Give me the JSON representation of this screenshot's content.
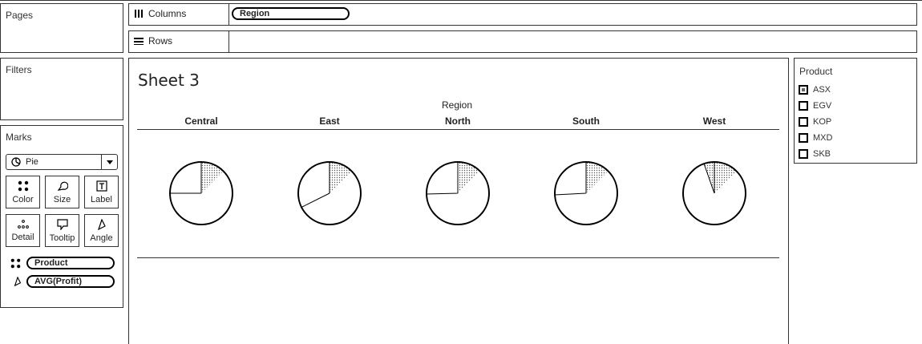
{
  "pages_panel": {
    "title": "Pages"
  },
  "filters_panel": {
    "title": "Filters"
  },
  "columns_shelf": {
    "label": "Columns",
    "pills": [
      "Region"
    ]
  },
  "rows_shelf": {
    "label": "Rows"
  },
  "marks_panel": {
    "title": "Marks",
    "mark_type": "Pie",
    "buttons": [
      "Color",
      "Size",
      "Label",
      "Detail",
      "Tooltip",
      "Angle"
    ],
    "pills": [
      {
        "icon": "color-dots-icon",
        "label": "Product"
      },
      {
        "icon": "angle-icon",
        "label": "AVG(Profit)"
      }
    ]
  },
  "sheet": {
    "title": "Sheet 3",
    "column_header": "Region",
    "regions": [
      "Central",
      "East",
      "North",
      "South",
      "West"
    ]
  },
  "legend": {
    "title": "Product",
    "items": [
      "ASX",
      "EGV",
      "KOP",
      "MXD",
      "SKB"
    ]
  }
}
